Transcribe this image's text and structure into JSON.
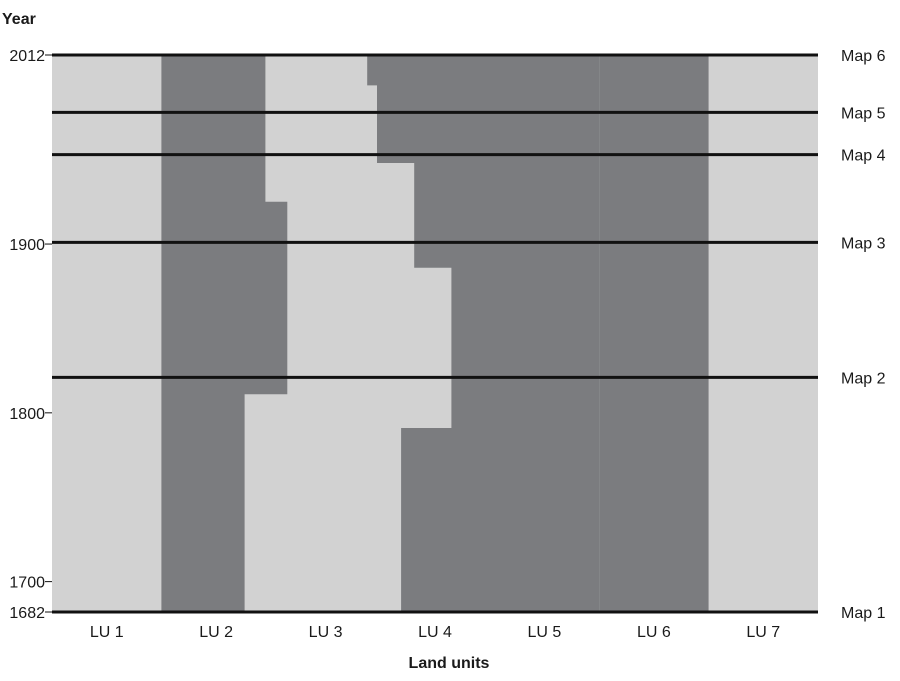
{
  "chart_data": {
    "type": "area",
    "xlabel": "Land units",
    "ylabel": "Year",
    "ylim": [
      1682,
      2012
    ],
    "y_ticks": [
      "2012",
      "1900",
      "1800",
      "1700",
      "1682"
    ],
    "categories": [
      "LU 1",
      "LU 2",
      "LU 3",
      "LU 4",
      "LU 5",
      "LU 6",
      "LU 7"
    ],
    "map_lines": [
      {
        "label": "Map 1",
        "year": 1682
      },
      {
        "label": "Map 2",
        "year": 1821
      },
      {
        "label": "Map 3",
        "year": 1901
      },
      {
        "label": "Map 4",
        "year": 1953
      },
      {
        "label": "Map 5",
        "year": 1978
      },
      {
        "label": "Map 6",
        "year": 2012
      }
    ],
    "dark_boundary": {
      "left_edge": [
        {
          "from": 1682,
          "to": 2012,
          "lu_position": 1.0
        }
      ],
      "lu2_right_edge": [
        {
          "from": 1682,
          "to": 1811,
          "lu_position": 1.76
        },
        {
          "from": 1811,
          "to": 1925,
          "lu_position": 2.15
        },
        {
          "from": 1925,
          "to": 2012,
          "lu_position": 1.95
        }
      ],
      "lu4_left_edge": [
        {
          "from": 1682,
          "to": 1791,
          "lu_position": 3.19
        },
        {
          "from": 1791,
          "to": 1886,
          "lu_position": 3.65
        },
        {
          "from": 1886,
          "to": 1948,
          "lu_position": 3.31
        },
        {
          "from": 1948,
          "to": 1994,
          "lu_position": 2.97
        },
        {
          "from": 1994,
          "to": 2012,
          "lu_position": 2.88
        }
      ]
    },
    "colors": {
      "light": "#d2d2d2",
      "dark": "#7b7c7f",
      "line": "#111111"
    }
  }
}
